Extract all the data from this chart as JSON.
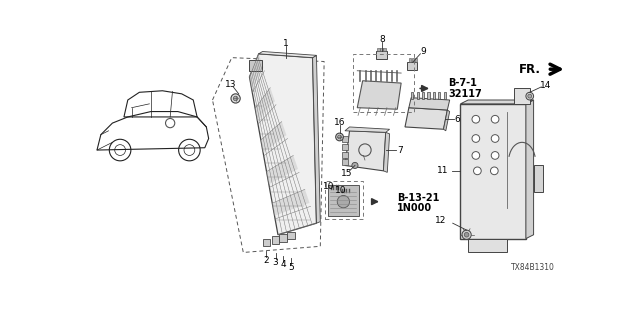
{
  "bg": "#ffffff",
  "lc": "#222222",
  "fig_w": 6.4,
  "fig_h": 3.2,
  "dpi": 100,
  "part_number": "TX84B1310",
  "fr_text": "FR.",
  "b71_text": "B-7-1\n32117",
  "b1321_text": "B-13-21\n1N000"
}
